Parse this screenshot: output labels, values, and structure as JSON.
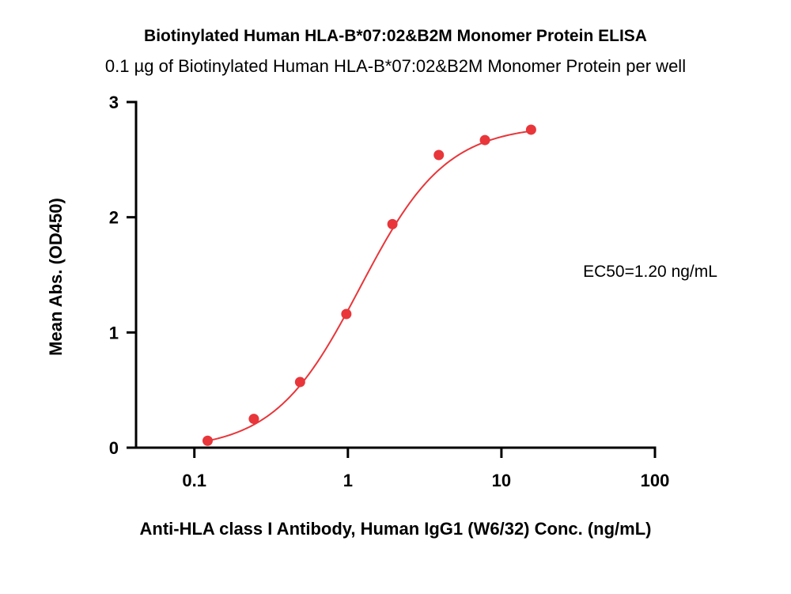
{
  "chart_data": {
    "type": "scatter",
    "title": "Biotinylated Human HLA-B*07:02&B2M Monomer Protein ELISA",
    "subtitle": "0.1 µg of Biotinylated Human HLA-B*07:02&B2M Monomer Protein per well",
    "xlabel": "Anti-HLA class I Antibody, Human IgG1 (W6/32) Conc. (ng/mL)",
    "ylabel": "Mean Abs. (OD450)",
    "x_scale": "log",
    "xlim": [
      0.0417,
      100
    ],
    "ylim": [
      0,
      3
    ],
    "x_ticks": [
      0.1,
      1,
      10,
      100
    ],
    "x_tick_labels": [
      "0.1",
      "1",
      "10",
      "100"
    ],
    "y_ticks": [
      0,
      1,
      2,
      3
    ],
    "y_tick_labels": [
      "0",
      "1",
      "2",
      "3"
    ],
    "grid": false,
    "series": [
      {
        "points": [
          {
            "x": 0.122,
            "y": 0.06
          },
          {
            "x": 0.244,
            "y": 0.25
          },
          {
            "x": 0.488,
            "y": 0.57
          },
          {
            "x": 0.977,
            "y": 1.16
          },
          {
            "x": 1.95,
            "y": 1.94
          },
          {
            "x": 3.91,
            "y": 2.54
          },
          {
            "x": 7.81,
            "y": 2.67
          },
          {
            "x": 15.6,
            "y": 2.76
          }
        ],
        "fit": {
          "bottom": -0.02,
          "top": 2.8,
          "ec50": 1.2,
          "hill": 1.55,
          "x_range": [
            0.122,
            15.6
          ]
        }
      }
    ],
    "annotation": "EC50=1.20 ng/mL",
    "colors": {
      "series": "#e8363a",
      "axis": "#000000"
    }
  }
}
